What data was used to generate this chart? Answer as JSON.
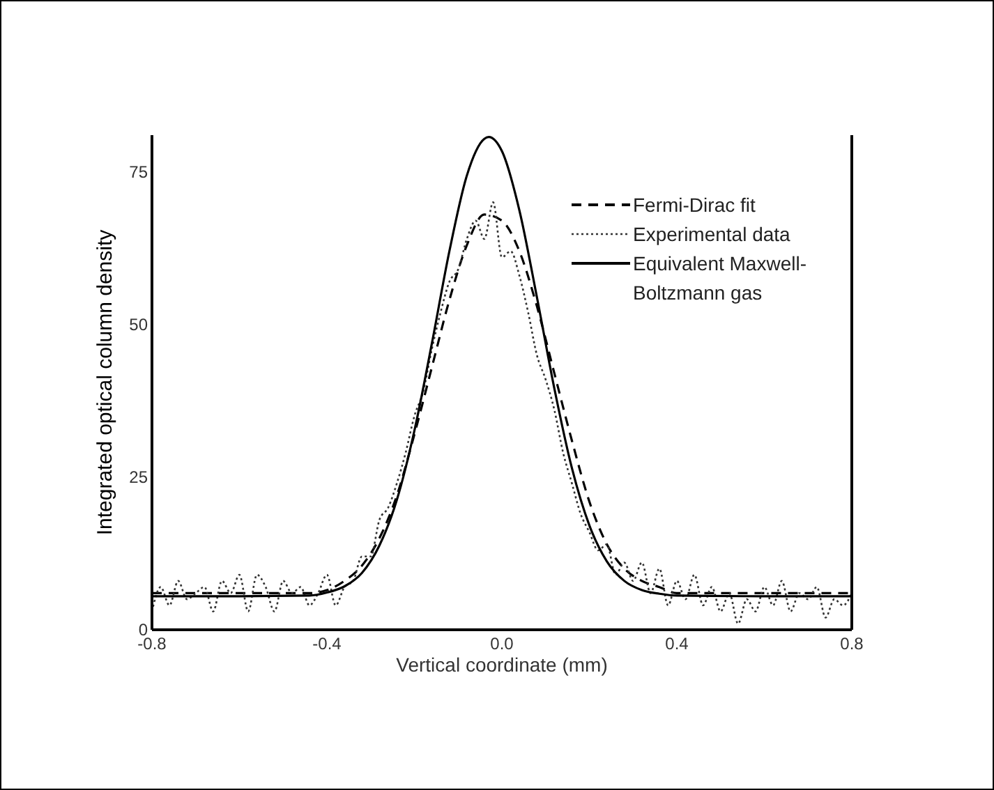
{
  "chart_data": {
    "type": "line",
    "xlabel": "Vertical coordinate (mm)",
    "ylabel": "Integrated optical column density",
    "xlim": [
      -0.8,
      0.8
    ],
    "ylim": [
      0,
      81
    ],
    "xticks": [
      {
        "value": -0.8,
        "label": "-0.8"
      },
      {
        "value": -0.4,
        "label": "-0.4"
      },
      {
        "value": 0,
        "label": "0.0"
      },
      {
        "value": 0.4,
        "label": "0.4"
      },
      {
        "value": 0.8,
        "label": "0.8"
      }
    ],
    "yticks": [
      0,
      25,
      50,
      75
    ],
    "grid": false,
    "legend": "top right",
    "series": [
      {
        "name": "Fermi-Dirac fit",
        "color": "#000000",
        "line_style": "dashed",
        "x": [
          -0.8,
          -0.72,
          -0.64,
          -0.56,
          -0.48,
          -0.44,
          -0.4,
          -0.36,
          -0.32,
          -0.28,
          -0.24,
          -0.2,
          -0.16,
          -0.12,
          -0.08,
          -0.04,
          0,
          0.04,
          0.08,
          0.12,
          0.16,
          0.2,
          0.24,
          0.28,
          0.32,
          0.36,
          0.4,
          0.48,
          0.56,
          0.64,
          0.72,
          0.8
        ],
        "values": [
          6,
          6,
          6,
          6,
          6,
          6,
          6.5,
          8,
          10.5,
          15,
          22,
          32,
          43,
          54,
          63,
          68,
          67,
          62,
          53,
          42,
          31,
          21,
          14,
          10,
          8,
          7,
          6,
          6,
          6,
          6,
          6,
          6
        ]
      },
      {
        "name": "Experimental data",
        "color": "#333333",
        "line_style": "dotted",
        "x": [
          -0.8,
          -0.78,
          -0.76,
          -0.74,
          -0.72,
          -0.7,
          -0.68,
          -0.66,
          -0.64,
          -0.62,
          -0.6,
          -0.58,
          -0.56,
          -0.54,
          -0.52,
          -0.5,
          -0.48,
          -0.46,
          -0.44,
          -0.42,
          -0.4,
          -0.38,
          -0.36,
          -0.34,
          -0.32,
          -0.3,
          -0.28,
          -0.26,
          -0.24,
          -0.22,
          -0.2,
          -0.18,
          -0.16,
          -0.14,
          -0.12,
          -0.1,
          -0.08,
          -0.06,
          -0.04,
          -0.02,
          0,
          0.02,
          0.04,
          0.06,
          0.08,
          0.1,
          0.12,
          0.14,
          0.16,
          0.18,
          0.2,
          0.22,
          0.24,
          0.26,
          0.28,
          0.3,
          0.32,
          0.34,
          0.36,
          0.38,
          0.4,
          0.42,
          0.44,
          0.46,
          0.48,
          0.5,
          0.52,
          0.54,
          0.56,
          0.58,
          0.6,
          0.62,
          0.64,
          0.66,
          0.68,
          0.7,
          0.72,
          0.74,
          0.76,
          0.78,
          0.8
        ],
        "values": [
          3,
          7,
          4,
          8,
          5,
          6,
          7,
          3,
          8,
          6,
          9,
          3,
          9,
          7,
          3,
          8,
          6,
          7,
          4,
          6,
          9,
          4,
          7,
          8,
          12,
          12,
          18,
          20,
          24,
          29,
          35,
          39,
          46,
          52,
          57,
          59,
          64,
          67,
          64,
          70,
          61,
          62,
          58,
          52,
          45,
          41,
          36,
          29,
          24,
          19,
          16,
          13,
          14,
          9,
          11,
          8,
          11,
          6,
          10,
          4,
          8,
          5,
          9,
          4,
          7,
          3,
          6,
          1,
          5,
          3,
          7,
          4,
          8,
          3,
          6,
          5,
          7,
          2,
          5,
          4,
          6
        ]
      },
      {
        "name": "Equivalent Maxwell-Boltzmann gas",
        "color": "#000000",
        "line_style": "solid",
        "x": [
          -0.8,
          -0.6,
          -0.44,
          -0.4,
          -0.36,
          -0.32,
          -0.28,
          -0.24,
          -0.2,
          -0.16,
          -0.12,
          -0.08,
          -0.04,
          -0.03,
          0,
          0.04,
          0.08,
          0.12,
          0.16,
          0.2,
          0.24,
          0.28,
          0.32,
          0.36,
          0.4,
          0.6,
          0.8
        ],
        "values": [
          5.5,
          5.5,
          5.6,
          6.1,
          7.1,
          9.3,
          13.8,
          21.3,
          32.6,
          46.9,
          62,
          74.4,
          80.4,
          80.7,
          78.4,
          68.7,
          54.5,
          39.5,
          26.5,
          17.1,
          11.2,
          8,
          6.5,
          5.9,
          5.6,
          5.5,
          5.5
        ]
      }
    ]
  }
}
